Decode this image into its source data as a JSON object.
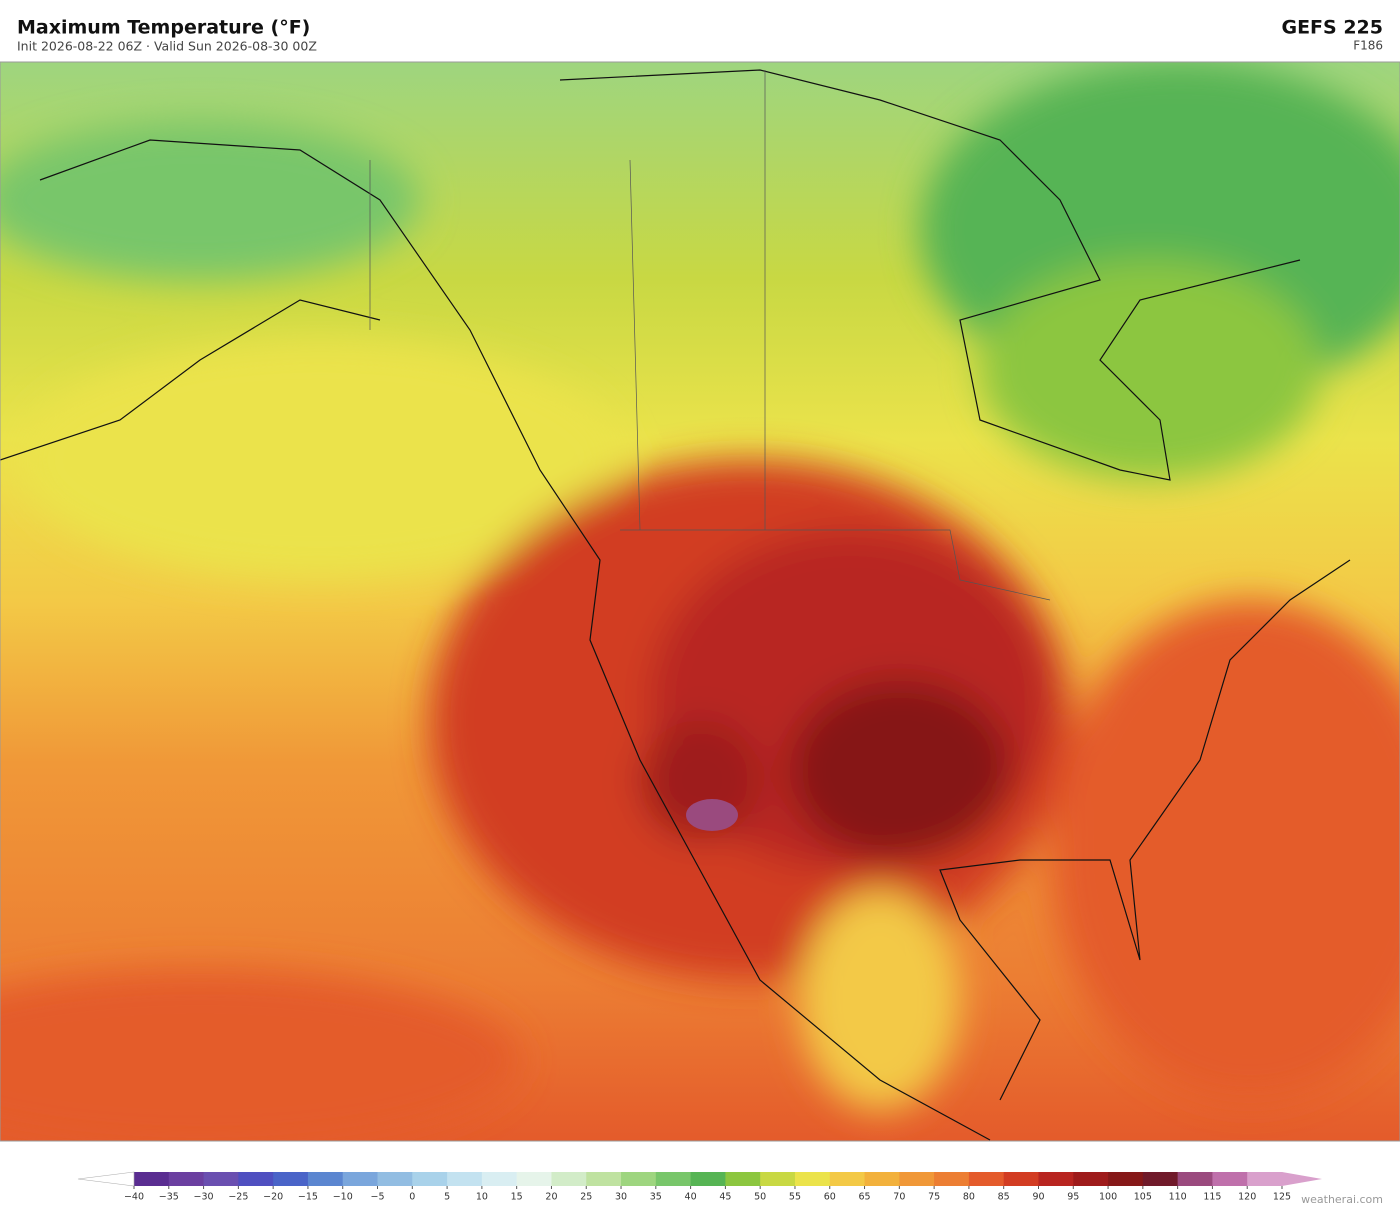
{
  "header": {
    "title": "Maximum Temperature  (°F)",
    "subtitle": "Init 2026-08-22 06Z   ·   Valid Sun 2026-08-30 00Z",
    "model": "GEFS  225",
    "forecast_hour": "F186"
  },
  "colorbar": {
    "ticks": [
      {
        "value": -40,
        "label": "−40"
      },
      {
        "value": -35,
        "label": "−35"
      },
      {
        "value": -30,
        "label": "−30"
      },
      {
        "value": -25,
        "label": "−25"
      },
      {
        "value": -20,
        "label": "−20"
      },
      {
        "value": -15,
        "label": "−15"
      },
      {
        "value": -10,
        "label": "−10"
      },
      {
        "value": -5,
        "label": "−5"
      },
      0,
      5,
      10,
      15,
      20,
      25,
      30,
      35,
      40,
      45,
      50,
      55,
      60,
      65,
      70,
      75,
      80,
      85,
      90,
      95,
      100,
      105,
      110,
      115,
      120,
      125
    ],
    "colors": [
      "#5a2d91",
      "#6b3fa0",
      "#6a4fb0",
      "#4f4fc0",
      "#4a64c8",
      "#5b86d0",
      "#7aa6dc",
      "#92bde2",
      "#a9d2ea",
      "#c3e2f0",
      "#d9eef2",
      "#e6f4ea",
      "#d2ecc8",
      "#bfe2a0",
      "#9ed57f",
      "#78c66a",
      "#56b454",
      "#8cc63f",
      "#c8d843",
      "#ebe34b",
      "#f3c946",
      "#f2b13c",
      "#f09838",
      "#ec7e33",
      "#e45b2b",
      "#d23c22",
      "#b82520",
      "#9e1b1b",
      "#861818",
      "#701a2a",
      "#9a4a7e",
      "#bf70ab",
      "#d9a0cc"
    ],
    "extend_low_color": "#ffffff",
    "extend_high_color": "#d9a0cc"
  },
  "footer": {
    "credit": "weatherai.com"
  }
}
